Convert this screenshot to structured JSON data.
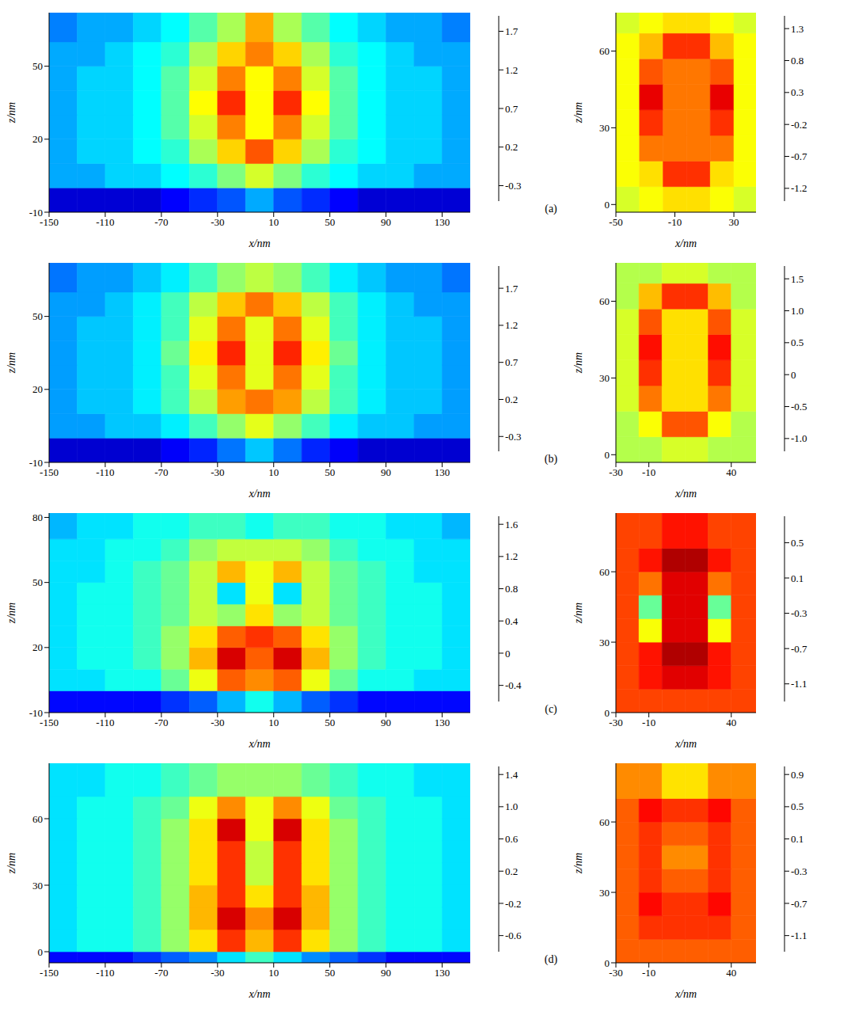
{
  "chart_data": [
    {
      "type": "heatmap",
      "title": "(a)",
      "x_label": "x/nm",
      "y_label": "z/nm",
      "xlim": [
        -150,
        150
      ],
      "xticks": [
        -150,
        -110,
        -70,
        -30,
        10,
        50,
        90,
        130
      ],
      "ylim": [
        -10,
        72
      ],
      "yticks": [
        -10,
        20,
        50
      ],
      "x_edges": [
        -150,
        -130,
        -110,
        -90,
        -70,
        -50,
        -30,
        -10,
        10,
        30,
        50,
        70,
        90,
        110,
        130,
        150
      ],
      "y_edges": [
        -10,
        0,
        10,
        20,
        30,
        40,
        50,
        60,
        72
      ],
      "cells": [
        [
          -0.3,
          -0.3,
          -0.3,
          -0.3,
          -0.2,
          -0.1,
          0.0,
          0.2,
          0.0,
          -0.1,
          -0.2,
          -0.3,
          -0.3,
          -0.3,
          -0.3
        ],
        [
          0.2,
          0.2,
          0.3,
          0.3,
          0.4,
          0.5,
          0.7,
          0.9,
          0.7,
          0.5,
          0.4,
          0.3,
          0.3,
          0.2,
          0.2
        ],
        [
          0.2,
          0.3,
          0.3,
          0.4,
          0.5,
          0.8,
          1.1,
          1.4,
          1.1,
          0.8,
          0.5,
          0.4,
          0.3,
          0.3,
          0.2
        ],
        [
          0.2,
          0.3,
          0.3,
          0.4,
          0.6,
          0.9,
          1.3,
          1.0,
          1.3,
          0.9,
          0.6,
          0.4,
          0.3,
          0.3,
          0.2
        ],
        [
          0.2,
          0.3,
          0.3,
          0.4,
          0.6,
          1.0,
          1.5,
          1.0,
          1.5,
          1.0,
          0.6,
          0.4,
          0.3,
          0.3,
          0.2
        ],
        [
          0.2,
          0.3,
          0.3,
          0.4,
          0.6,
          0.9,
          1.3,
          1.0,
          1.3,
          0.9,
          0.6,
          0.4,
          0.3,
          0.3,
          0.2
        ],
        [
          0.2,
          0.2,
          0.3,
          0.4,
          0.5,
          0.8,
          1.1,
          1.3,
          1.1,
          0.8,
          0.5,
          0.4,
          0.3,
          0.2,
          0.2
        ],
        [
          0.1,
          0.2,
          0.2,
          0.3,
          0.4,
          0.6,
          0.8,
          1.2,
          0.8,
          0.6,
          0.4,
          0.3,
          0.2,
          0.2,
          0.1
        ]
      ],
      "colorbar": {
        "range": [
          -0.5,
          1.9
        ],
        "ticks": [
          -0.3,
          0.2,
          0.7,
          1.2,
          1.7
        ]
      }
    },
    {
      "type": "heatmap",
      "x_label": "x/nm",
      "y_label": "z/nm",
      "xlim": [
        -50,
        45
      ],
      "xticks": [
        -50,
        -10,
        30
      ],
      "ylim": [
        -3,
        75
      ],
      "yticks": [
        0,
        30,
        60
      ],
      "x_edges": [
        -50,
        -34,
        -18,
        -2,
        14,
        30,
        45
      ],
      "y_edges": [
        -3,
        7,
        17,
        27,
        37,
        47,
        57,
        67,
        75
      ],
      "cells": [
        [
          0.3,
          0.4,
          0.5,
          0.5,
          0.4,
          0.3
        ],
        [
          0.4,
          0.5,
          1.0,
          1.0,
          0.5,
          0.4
        ],
        [
          0.4,
          0.8,
          0.8,
          0.8,
          0.8,
          0.4
        ],
        [
          0.4,
          1.0,
          0.8,
          0.8,
          1.0,
          0.4
        ],
        [
          0.4,
          1.2,
          0.8,
          0.8,
          1.2,
          0.4
        ],
        [
          0.4,
          0.9,
          0.8,
          0.8,
          0.9,
          0.4
        ],
        [
          0.4,
          0.6,
          1.0,
          1.0,
          0.6,
          0.4
        ],
        [
          0.3,
          0.4,
          0.5,
          0.5,
          0.4,
          0.3
        ]
      ],
      "colorbar": {
        "range": [
          -1.4,
          1.5
        ],
        "ticks": [
          1.3,
          0.8,
          0.3,
          -0.2,
          -0.7,
          -1.2
        ]
      }
    },
    {
      "type": "heatmap",
      "title": "(b)",
      "x_label": "x/nm",
      "y_label": "z/nm",
      "xlim": [
        -150,
        150
      ],
      "xticks": [
        -150,
        -110,
        -70,
        -30,
        10,
        50,
        90,
        130
      ],
      "ylim": [
        -10,
        72
      ],
      "yticks": [
        -10,
        20,
        50
      ],
      "x_edges": [
        -150,
        -130,
        -110,
        -90,
        -70,
        -50,
        -30,
        -10,
        10,
        30,
        50,
        70,
        90,
        110,
        130,
        150
      ],
      "y_edges": [
        -10,
        0,
        10,
        20,
        30,
        40,
        50,
        60,
        72
      ],
      "cells": [
        [
          -0.3,
          -0.3,
          -0.3,
          -0.3,
          -0.2,
          -0.1,
          0.1,
          0.3,
          0.1,
          -0.1,
          -0.2,
          -0.3,
          -0.3,
          -0.3,
          -0.3
        ],
        [
          0.2,
          0.2,
          0.3,
          0.3,
          0.4,
          0.6,
          0.8,
          1.0,
          0.8,
          0.6,
          0.4,
          0.3,
          0.3,
          0.2,
          0.2
        ],
        [
          0.2,
          0.3,
          0.3,
          0.4,
          0.6,
          0.9,
          1.3,
          1.4,
          1.3,
          0.9,
          0.6,
          0.4,
          0.3,
          0.3,
          0.2
        ],
        [
          0.2,
          0.3,
          0.3,
          0.4,
          0.6,
          1.0,
          1.4,
          1.0,
          1.4,
          1.0,
          0.6,
          0.4,
          0.3,
          0.3,
          0.2
        ],
        [
          0.2,
          0.3,
          0.3,
          0.4,
          0.7,
          1.1,
          1.6,
          1.0,
          1.6,
          1.1,
          0.7,
          0.4,
          0.3,
          0.3,
          0.2
        ],
        [
          0.2,
          0.3,
          0.3,
          0.4,
          0.6,
          1.0,
          1.4,
          1.0,
          1.4,
          1.0,
          0.6,
          0.4,
          0.3,
          0.3,
          0.2
        ],
        [
          0.2,
          0.2,
          0.3,
          0.4,
          0.6,
          0.9,
          1.2,
          1.4,
          1.2,
          0.9,
          0.6,
          0.4,
          0.3,
          0.2,
          0.2
        ],
        [
          0.1,
          0.2,
          0.2,
          0.3,
          0.4,
          0.6,
          0.8,
          0.9,
          0.8,
          0.6,
          0.4,
          0.3,
          0.2,
          0.2,
          0.1
        ]
      ],
      "colorbar": {
        "range": [
          -0.5,
          2.0
        ],
        "ticks": [
          -0.3,
          0.2,
          0.7,
          1.2,
          1.7
        ]
      }
    },
    {
      "type": "heatmap",
      "x_label": "x/nm",
      "y_label": "z/nm",
      "xlim": [
        -30,
        55
      ],
      "xticks": [
        -30,
        -10,
        40
      ],
      "ylim": [
        -3,
        75
      ],
      "yticks": [
        0,
        30,
        60
      ],
      "x_edges": [
        -30,
        -16,
        -2,
        12,
        26,
        40,
        55
      ],
      "y_edges": [
        -3,
        7,
        17,
        27,
        37,
        47,
        57,
        67,
        75
      ],
      "cells": [
        [
          0.4,
          0.4,
          0.5,
          0.5,
          0.4,
          0.4
        ],
        [
          0.4,
          0.6,
          1.1,
          1.1,
          0.6,
          0.4
        ],
        [
          0.5,
          1.0,
          0.7,
          0.7,
          1.0,
          0.5
        ],
        [
          0.5,
          1.2,
          0.7,
          0.7,
          1.2,
          0.5
        ],
        [
          0.5,
          1.3,
          0.7,
          0.7,
          1.3,
          0.5
        ],
        [
          0.5,
          1.1,
          0.7,
          0.7,
          1.1,
          0.5
        ],
        [
          0.4,
          0.8,
          1.2,
          1.2,
          0.8,
          0.4
        ],
        [
          0.4,
          0.4,
          0.5,
          0.5,
          0.4,
          0.4
        ]
      ],
      "colorbar": {
        "range": [
          -1.2,
          1.7
        ],
        "ticks": [
          {
            "value": -1,
            "label": "-1.0"
          },
          -0.5,
          0,
          0.5,
          {
            "value": 1,
            "label": "1.0"
          },
          1.5
        ]
      }
    },
    {
      "type": "heatmap",
      "title": "(c)",
      "x_label": "x/nm",
      "y_label": "z/nm",
      "xlim": [
        -150,
        150
      ],
      "xticks": [
        -150,
        -110,
        -70,
        -30,
        10,
        50,
        90,
        130
      ],
      "ylim": [
        -10,
        82
      ],
      "yticks": [
        -10,
        20,
        50,
        80
      ],
      "x_edges": [
        -150,
        -130,
        -110,
        -90,
        -70,
        -50,
        -30,
        -10,
        10,
        30,
        50,
        70,
        90,
        110,
        130,
        150
      ],
      "y_edges": [
        -10,
        0,
        10,
        20,
        30,
        40,
        50,
        60,
        70,
        82
      ],
      "cells": [
        [
          -0.3,
          -0.3,
          -0.3,
          -0.3,
          -0.2,
          -0.1,
          0.1,
          0.3,
          0.1,
          -0.1,
          -0.2,
          -0.3,
          -0.3,
          -0.3,
          -0.3
        ],
        [
          0.2,
          0.2,
          0.3,
          0.3,
          0.5,
          0.8,
          1.2,
          1.1,
          1.2,
          0.8,
          0.5,
          0.3,
          0.3,
          0.2,
          0.2
        ],
        [
          0.2,
          0.3,
          0.3,
          0.4,
          0.6,
          1.0,
          1.5,
          1.2,
          1.5,
          1.0,
          0.6,
          0.4,
          0.3,
          0.3,
          0.2
        ],
        [
          0.2,
          0.3,
          0.3,
          0.4,
          0.6,
          0.9,
          1.2,
          1.3,
          1.2,
          0.9,
          0.6,
          0.4,
          0.3,
          0.3,
          0.2
        ],
        [
          0.2,
          0.3,
          0.3,
          0.4,
          0.5,
          0.7,
          0.6,
          0.9,
          0.6,
          0.7,
          0.5,
          0.4,
          0.3,
          0.3,
          0.2
        ],
        [
          0.2,
          0.3,
          0.3,
          0.4,
          0.5,
          0.7,
          0.2,
          0.8,
          0.2,
          0.7,
          0.5,
          0.4,
          0.3,
          0.3,
          0.2
        ],
        [
          0.2,
          0.2,
          0.3,
          0.4,
          0.5,
          0.7,
          1.0,
          0.8,
          1.0,
          0.7,
          0.5,
          0.4,
          0.3,
          0.2,
          0.2
        ],
        [
          0.2,
          0.2,
          0.3,
          0.3,
          0.4,
          0.6,
          0.7,
          0.7,
          0.7,
          0.6,
          0.4,
          0.3,
          0.3,
          0.2,
          0.2
        ],
        [
          0.1,
          0.2,
          0.2,
          0.3,
          0.3,
          0.4,
          0.4,
          0.3,
          0.4,
          0.4,
          0.3,
          0.3,
          0.2,
          0.2,
          0.1
        ]
      ],
      "colorbar": {
        "range": [
          -0.6,
          1.7
        ],
        "ticks": [
          -0.4,
          0,
          0.4,
          0.8,
          1.2,
          1.6
        ]
      }
    },
    {
      "type": "heatmap",
      "x_label": "x/nm",
      "y_label": "z/nm",
      "xlim": [
        -30,
        55
      ],
      "xticks": [
        -30,
        -10,
        40
      ],
      "ylim": [
        0,
        85
      ],
      "yticks": [
        0,
        30,
        60
      ],
      "x_edges": [
        -30,
        -16,
        -2,
        12,
        26,
        40,
        55
      ],
      "y_edges": [
        0,
        10,
        20,
        30,
        40,
        50,
        60,
        70,
        85
      ],
      "cells": [
        [
          0.4,
          0.4,
          0.4,
          0.4,
          0.4,
          0.4
        ],
        [
          0.4,
          0.5,
          0.6,
          0.6,
          0.5,
          0.4
        ],
        [
          0.4,
          0.5,
          0.7,
          0.7,
          0.5,
          0.4
        ],
        [
          0.4,
          0.0,
          0.6,
          0.6,
          0.0,
          0.4
        ],
        [
          0.4,
          -0.3,
          0.6,
          0.6,
          -0.3,
          0.4
        ],
        [
          0.4,
          0.3,
          0.6,
          0.6,
          0.3,
          0.4
        ],
        [
          0.4,
          0.5,
          0.7,
          0.7,
          0.5,
          0.4
        ],
        [
          0.4,
          0.4,
          0.5,
          0.5,
          0.4,
          0.4
        ]
      ],
      "colorbar": {
        "range": [
          -1.3,
          0.8
        ],
        "ticks": [
          -1.1,
          -0.7,
          -0.3,
          0.1,
          0.5
        ]
      }
    },
    {
      "type": "heatmap",
      "title": "(d)",
      "x_label": "x/nm",
      "y_label": "z/nm",
      "xlim": [
        -150,
        150
      ],
      "xticks": [
        -150,
        -110,
        -70,
        -30,
        10,
        50,
        90,
        130
      ],
      "ylim": [
        -5,
        85
      ],
      "yticks": [
        0,
        30,
        60
      ],
      "x_edges": [
        -150,
        -130,
        -110,
        -90,
        -70,
        -50,
        -30,
        -10,
        10,
        30,
        50,
        70,
        90,
        110,
        130,
        150
      ],
      "y_edges": [
        -5,
        0,
        10,
        20,
        30,
        40,
        50,
        60,
        70,
        85
      ],
      "cells": [
        [
          -0.5,
          -0.5,
          -0.5,
          -0.4,
          -0.3,
          -0.2,
          0.0,
          0.2,
          0.0,
          -0.2,
          -0.3,
          -0.4,
          -0.5,
          -0.5,
          -0.5
        ],
        [
          0.0,
          0.1,
          0.1,
          0.2,
          0.4,
          0.7,
          1.1,
          0.8,
          1.1,
          0.7,
          0.4,
          0.2,
          0.1,
          0.1,
          0.0
        ],
        [
          0.0,
          0.1,
          0.1,
          0.2,
          0.4,
          0.8,
          1.3,
          0.9,
          1.3,
          0.8,
          0.4,
          0.2,
          0.1,
          0.1,
          0.0
        ],
        [
          0.0,
          0.1,
          0.1,
          0.2,
          0.4,
          0.8,
          1.1,
          0.7,
          1.1,
          0.8,
          0.4,
          0.2,
          0.1,
          0.1,
          0.0
        ],
        [
          0.0,
          0.1,
          0.1,
          0.2,
          0.4,
          0.7,
          1.1,
          0.5,
          1.1,
          0.7,
          0.4,
          0.2,
          0.1,
          0.1,
          0.0
        ],
        [
          0.0,
          0.1,
          0.1,
          0.2,
          0.4,
          0.7,
          1.1,
          0.5,
          1.1,
          0.7,
          0.4,
          0.2,
          0.1,
          0.1,
          0.0
        ],
        [
          0.0,
          0.1,
          0.1,
          0.2,
          0.4,
          0.7,
          1.3,
          0.6,
          1.3,
          0.7,
          0.4,
          0.2,
          0.1,
          0.1,
          0.0
        ],
        [
          0.0,
          0.1,
          0.1,
          0.2,
          0.3,
          0.6,
          0.9,
          0.6,
          0.9,
          0.6,
          0.3,
          0.2,
          0.1,
          0.1,
          0.0
        ],
        [
          0.0,
          0.0,
          0.1,
          0.1,
          0.2,
          0.3,
          0.4,
          0.4,
          0.4,
          0.3,
          0.2,
          0.1,
          0.1,
          0.0,
          0.0
        ]
      ],
      "colorbar": {
        "range": [
          -0.8,
          1.5
        ],
        "ticks": [
          -0.6,
          -0.2,
          0.2,
          0.6,
          {
            "value": 1,
            "label": "1.0"
          },
          1.4
        ]
      }
    },
    {
      "type": "heatmap",
      "x_label": "x/nm",
      "y_label": "z/nm",
      "xlim": [
        -30,
        55
      ],
      "xticks": [
        -30,
        -10,
        40
      ],
      "ylim": [
        0,
        85
      ],
      "yticks": [
        0,
        30,
        60
      ],
      "x_edges": [
        -30,
        -16,
        -2,
        12,
        26,
        40,
        55
      ],
      "y_edges": [
        0,
        10,
        20,
        30,
        40,
        50,
        60,
        70,
        85
      ],
      "cells": [
        [
          0.5,
          0.5,
          0.5,
          0.5,
          0.5,
          0.5
        ],
        [
          0.5,
          0.6,
          0.6,
          0.6,
          0.6,
          0.5
        ],
        [
          0.5,
          0.7,
          0.6,
          0.6,
          0.7,
          0.5
        ],
        [
          0.5,
          0.6,
          0.5,
          0.5,
          0.6,
          0.5
        ],
        [
          0.5,
          0.6,
          0.4,
          0.4,
          0.6,
          0.5
        ],
        [
          0.5,
          0.6,
          0.5,
          0.5,
          0.6,
          0.5
        ],
        [
          0.5,
          0.7,
          0.6,
          0.6,
          0.7,
          0.5
        ],
        [
          0.4,
          0.4,
          0.2,
          0.2,
          0.4,
          0.4
        ]
      ],
      "colorbar": {
        "range": [
          -1.3,
          1.0
        ],
        "ticks": [
          -1.1,
          -0.7,
          -0.3,
          0.1,
          0.5,
          0.9
        ]
      }
    }
  ]
}
